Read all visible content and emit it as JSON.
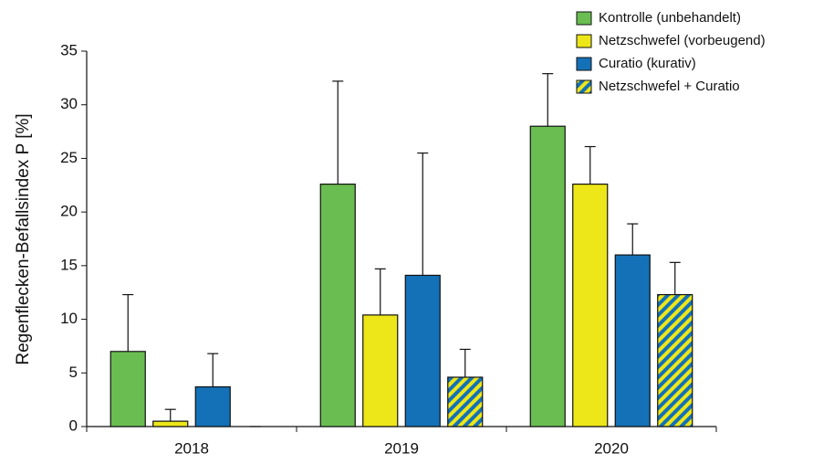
{
  "chart_data": {
    "type": "bar",
    "y_label": "Regenflecken-Befallsindex P [%]",
    "categories": [
      "2018",
      "2019",
      "2020"
    ],
    "series": [
      {
        "name": "Kontrolle (unbehandelt)",
        "color": "#6abd51",
        "values": [
          7.0,
          22.6,
          28.0
        ],
        "errors": [
          5.3,
          9.6,
          4.9
        ]
      },
      {
        "name": "Netzschwefel (vorbeugend)",
        "color": "#ede619",
        "values": [
          0.5,
          10.4,
          22.6
        ],
        "errors": [
          1.1,
          4.3,
          3.5
        ]
      },
      {
        "name": "Curatio (kurativ)",
        "color": "#1471b7",
        "values": [
          3.7,
          14.1,
          16.0
        ],
        "errors": [
          3.1,
          11.4,
          2.9
        ]
      },
      {
        "name": "Netzschwefel + Curatio",
        "color": "#ede619",
        "stripe_color": "#1471b7",
        "pattern": "diagonal-stripes",
        "values": [
          0,
          4.6,
          12.3
        ],
        "errors": [
          0,
          2.6,
          3.0
        ]
      }
    ],
    "ylim": [
      0,
      35
    ],
    "yticks": [
      0,
      5,
      10,
      15,
      20,
      25,
      30,
      35
    ],
    "legend": "top-right"
  }
}
